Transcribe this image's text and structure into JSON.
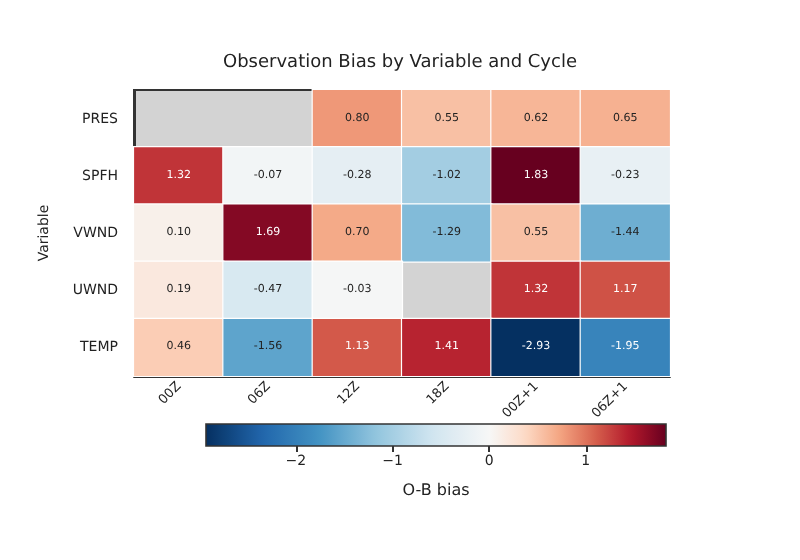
{
  "chart_data": {
    "type": "heatmap",
    "title": "Observation Bias by Variable and Cycle",
    "ylabel": "Variable",
    "clabel": "O-B bias",
    "categories": [
      "00Z",
      "06Z",
      "12Z",
      "18Z",
      "00Z+1",
      "06Z+1"
    ],
    "y_categories": [
      "PRES",
      "SPFH",
      "VWND",
      "UWND",
      "TEMP"
    ],
    "cells": [
      [
        null,
        null,
        0.8,
        0.55,
        0.62,
        0.65
      ],
      [
        1.32,
        -0.07,
        -0.28,
        -1.02,
        1.83,
        -0.23
      ],
      [
        0.1,
        1.69,
        0.7,
        -1.29,
        0.55,
        -1.44
      ],
      [
        0.19,
        -0.47,
        -0.03,
        null,
        1.32,
        1.17
      ],
      [
        0.46,
        -1.56,
        1.13,
        1.41,
        -2.93,
        -1.95
      ]
    ],
    "cell_labels": [
      [
        null,
        null,
        "0.80",
        "0.55",
        "0.62",
        "0.65"
      ],
      [
        "1.32",
        "-0.07",
        "-0.28",
        "-1.02",
        "1.83",
        "-0.23"
      ],
      [
        "0.10",
        "1.69",
        "0.70",
        "-1.29",
        "0.55",
        "-1.44"
      ],
      [
        "0.19",
        "-0.47",
        "-0.03",
        null,
        "1.32",
        "1.17"
      ],
      [
        "0.46",
        "-1.56",
        "1.13",
        "1.41",
        "-2.93",
        "-1.95"
      ]
    ],
    "clim": [
      -2.93,
      1.83
    ],
    "cticks": [
      -2,
      -1,
      0,
      1
    ],
    "data_labels": true
  }
}
